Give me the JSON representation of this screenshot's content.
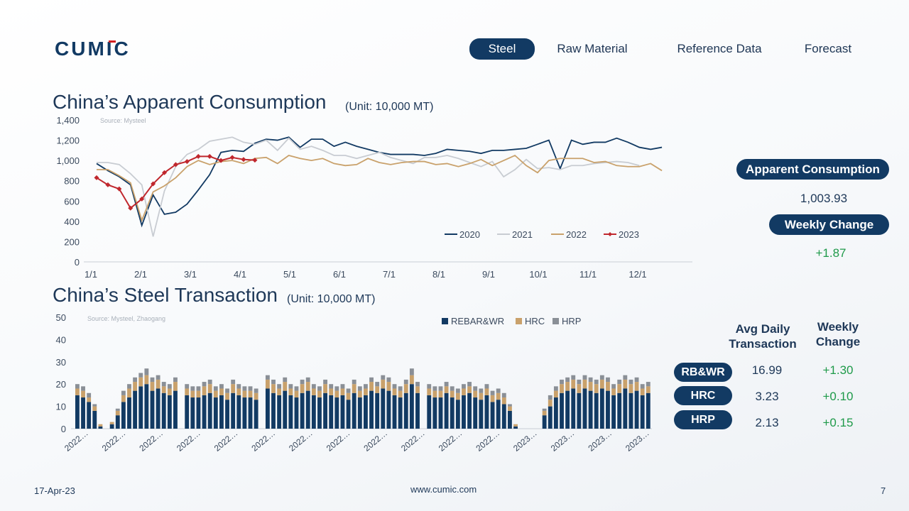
{
  "brand": {
    "logo_text": "CUMIC",
    "primary_color": "#123a63",
    "accent_color": "#d32020"
  },
  "nav": {
    "items": [
      {
        "label": "Steel",
        "active": true
      },
      {
        "label": "Raw Material",
        "active": false
      },
      {
        "label": "Reference Data",
        "active": false
      },
      {
        "label": "Forecast",
        "active": false
      }
    ]
  },
  "consumption": {
    "title": "China’s Apparent Consumption",
    "unit": "(Unit: 10,000 MT)",
    "source": "Source: Mysteel",
    "panel": {
      "label": "Apparent Consumption",
      "value": "1,003.93",
      "change_label": "Weekly Change",
      "change_value": "+1.87"
    }
  },
  "transaction": {
    "title": "China’s Steel Transaction",
    "unit": "(Unit: 10,000 MT)",
    "source": "Source: Mysteel, Zhaogang",
    "table": {
      "col_avg": "Avg Daily Transaction",
      "col_change": "Weekly Change",
      "rows": [
        {
          "label": "RB&WR",
          "avg": "16.99",
          "change": "+1.30"
        },
        {
          "label": "HRC",
          "avg": "3.23",
          "change": "+0.10"
        },
        {
          "label": "HRP",
          "avg": "2.13",
          "change": "+0.15"
        }
      ]
    }
  },
  "footer": {
    "date": "17-Apr-23",
    "url": "www.cumic.com",
    "page": "7"
  },
  "chart_data": [
    {
      "type": "line",
      "ylim": [
        0,
        1400
      ],
      "yticks": [
        "0",
        "200",
        "400",
        "600",
        "800",
        "1,000",
        "1,200",
        "1,400"
      ],
      "x_ticks": [
        "1/1",
        "2/1",
        "3/1",
        "4/1",
        "5/1",
        "6/1",
        "7/1",
        "8/1",
        "9/1",
        "10/1",
        "11/1",
        "12/1"
      ],
      "legend_position": "bottom-right",
      "series": [
        {
          "name": "2020",
          "color": "#123a63",
          "marker": false,
          "values": [
            970,
            900,
            840,
            760,
            360,
            660,
            470,
            490,
            570,
            710,
            860,
            1080,
            1100,
            1090,
            1170,
            1210,
            1200,
            1230,
            1130,
            1210,
            1210,
            1140,
            1180,
            1140,
            1110,
            1080,
            1060,
            1060,
            1060,
            1050,
            1070,
            1110,
            1100,
            1090,
            1070,
            1100,
            1100,
            1110,
            1120,
            1160,
            1200,
            920,
            1200,
            1160,
            1180,
            1180,
            1220,
            1180,
            1130,
            1110,
            1130
          ]
        },
        {
          "name": "2021",
          "color": "#c8ccd2",
          "marker": false,
          "values": [
            980,
            980,
            960,
            870,
            760,
            250,
            700,
            940,
            1060,
            1110,
            1190,
            1210,
            1230,
            1180,
            1160,
            1200,
            1100,
            1220,
            1110,
            1140,
            1100,
            1050,
            1050,
            1020,
            1050,
            1080,
            1030,
            1000,
            970,
            1030,
            1030,
            1050,
            1020,
            980,
            940,
            990,
            840,
            910,
            1010,
            920,
            930,
            910,
            950,
            950,
            970,
            980,
            990,
            980,
            950
          ]
        },
        {
          "name": "2022",
          "color": "#c9a16b",
          "marker": false,
          "values": [
            910,
            910,
            850,
            780,
            410,
            690,
            750,
            830,
            940,
            1000,
            960,
            990,
            1000,
            970,
            1020,
            1030,
            970,
            1050,
            1020,
            1000,
            1020,
            970,
            950,
            960,
            1020,
            980,
            960,
            980,
            990,
            990,
            960,
            970,
            940,
            970,
            1010,
            950,
            1000,
            1050,
            950,
            880,
            1000,
            1020,
            1020,
            1020,
            980,
            990,
            950,
            940,
            940,
            970,
            900
          ]
        },
        {
          "name": "2023",
          "color": "#c0272d",
          "marker": true,
          "values": [
            830,
            760,
            720,
            530,
            620,
            770,
            880,
            960,
            990,
            1040,
            1040,
            1000,
            1030,
            1010,
            1004
          ]
        }
      ]
    },
    {
      "type": "bar",
      "stacked": true,
      "ylim": [
        0,
        50
      ],
      "yticks": [
        "0",
        "10",
        "20",
        "30",
        "40",
        "50"
      ],
      "x_tick_labels": [
        "2022…",
        "2022…",
        "2022…",
        "2022…",
        "2022…",
        "2022…",
        "2022…",
        "2022…",
        "2022…",
        "2022…",
        "2022…",
        "2022…",
        "2023…",
        "2023…",
        "2023…",
        "2023…"
      ],
      "legend_position": "top",
      "series": [
        {
          "name": "REBAR&WR",
          "color": "#123a63",
          "values": [
            15,
            14,
            12,
            8,
            1,
            0,
            2,
            6,
            12,
            14,
            17,
            19,
            20,
            17,
            18,
            16,
            15,
            17,
            0,
            15,
            14,
            14,
            15,
            16,
            14,
            15,
            13,
            16,
            15,
            14,
            14,
            13,
            0,
            18,
            16,
            15,
            17,
            15,
            14,
            16,
            17,
            15,
            14,
            16,
            15,
            14,
            15,
            13,
            16,
            14,
            15,
            17,
            16,
            18,
            17,
            15,
            14,
            16,
            20,
            16,
            0,
            15,
            14,
            14,
            16,
            14,
            13,
            15,
            16,
            14,
            13,
            15,
            12,
            13,
            11,
            8,
            1,
            0,
            0,
            0,
            0,
            6,
            10,
            14,
            16,
            17,
            18,
            16,
            18,
            17,
            16,
            18,
            17,
            15,
            16,
            18,
            16,
            17,
            15,
            16
          ]
        },
        {
          "name": "HRC",
          "color": "#c9a16b",
          "values": [
            3,
            3,
            2,
            2,
            1,
            0,
            1,
            2,
            3,
            4,
            4,
            4,
            4,
            4,
            4,
            3,
            3,
            4,
            0,
            3,
            3,
            3,
            4,
            4,
            3,
            3,
            3,
            4,
            3,
            3,
            3,
            3,
            0,
            4,
            4,
            3,
            4,
            3,
            3,
            4,
            4,
            3,
            3,
            4,
            3,
            3,
            3,
            3,
            4,
            3,
            3,
            4,
            3,
            4,
            4,
            3,
            3,
            4,
            4,
            3,
            0,
            3,
            3,
            3,
            3,
            3,
            3,
            3,
            3,
            3,
            3,
            3,
            3,
            3,
            3,
            2,
            1,
            0,
            0,
            0,
            0,
            2,
            3,
            3,
            4,
            4,
            4,
            4,
            4,
            4,
            4,
            4,
            4,
            3,
            4,
            4,
            4,
            4,
            3,
            3
          ]
        },
        {
          "name": "HRP",
          "color": "#8a8f96",
          "values": [
            2,
            2,
            2,
            1,
            0,
            0,
            0,
            1,
            2,
            2,
            2,
            2,
            3,
            2,
            2,
            2,
            2,
            2,
            0,
            2,
            2,
            2,
            2,
            2,
            2,
            2,
            2,
            2,
            2,
            2,
            2,
            2,
            0,
            2,
            2,
            2,
            2,
            2,
            2,
            2,
            2,
            2,
            2,
            2,
            2,
            2,
            2,
            2,
            2,
            2,
            2,
            2,
            2,
            2,
            2,
            2,
            2,
            2,
            3,
            2,
            0,
            2,
            2,
            2,
            2,
            2,
            2,
            2,
            2,
            2,
            2,
            2,
            2,
            2,
            2,
            1,
            0,
            0,
            0,
            0,
            0,
            1,
            2,
            2,
            2,
            2,
            2,
            2,
            2,
            2,
            2,
            2,
            2,
            2,
            2,
            2,
            2,
            2,
            2,
            2
          ]
        }
      ]
    }
  ]
}
